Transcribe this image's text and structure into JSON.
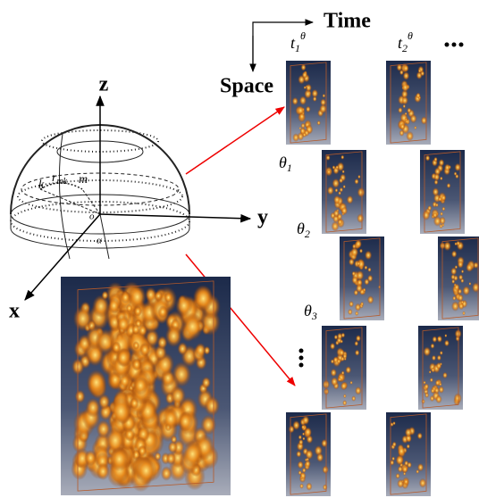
{
  "axes": {
    "time": "Time",
    "space": "Space",
    "z": "z",
    "y": "y",
    "x": "x"
  },
  "columns": [
    {
      "base": "t",
      "sub": "1",
      "sup": "θ"
    },
    {
      "base": "t",
      "sub": "2",
      "sup": "θ"
    }
  ],
  "rows": [
    {
      "base": "θ",
      "sub": "1"
    },
    {
      "base": "θ",
      "sub": "2"
    },
    {
      "base": "θ",
      "sub": "3"
    }
  ],
  "hemisphere": {
    "k": "k",
    "r": {
      "base": "r",
      "sub": "mk"
    },
    "m": "m",
    "o": "o",
    "alpha": "α"
  }
}
